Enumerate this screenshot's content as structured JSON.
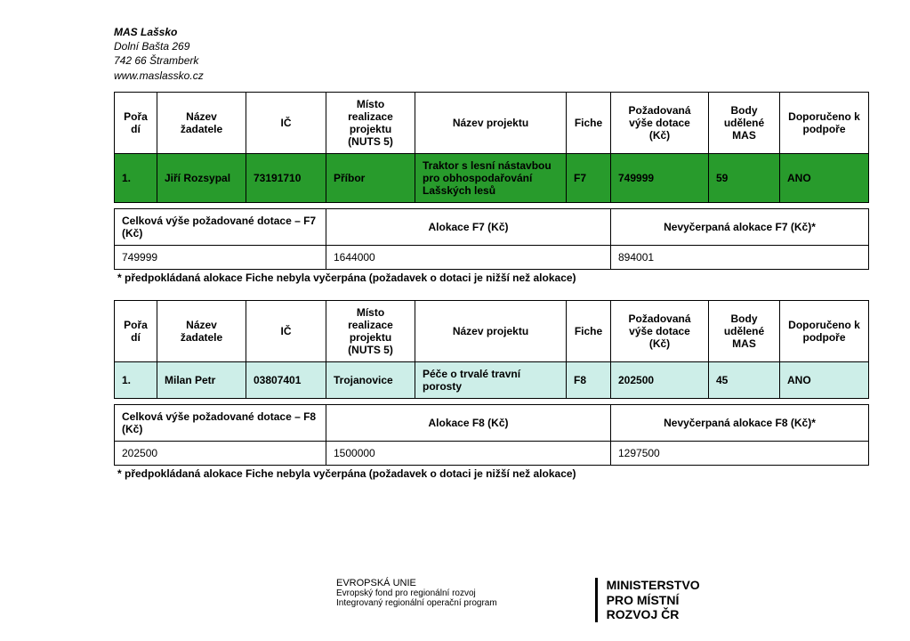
{
  "header": {
    "org": "MAS Lašsko",
    "addr1": "Dolní Bašta 269",
    "addr2": "742 66 Štramberk",
    "web": "www.maslassko.cz"
  },
  "table1": {
    "columns": [
      "Pořadí",
      "Název žadatele",
      "IČ",
      "Místo realizace projektu (NUTS 5)",
      "Název projektu",
      "Fiche",
      "Požadovaná výše dotace (Kč)",
      "Body udělené MAS",
      "Doporučeno k podpoře"
    ],
    "row": {
      "poradi": "1.",
      "zadatel": "Jiří Rozsypal",
      "ic": "73191710",
      "misto": "Příbor",
      "nazev_projektu": "Traktor s lesní nástavbou pro obhospodařování Lašských lesů",
      "fiche": "F7",
      "dotace": "749999",
      "body": "59",
      "doporuceno": "ANO"
    },
    "summary_heads": [
      "Celková výše požadované dotace – F7 (Kč)",
      "Alokace F7 (Kč)",
      "Nevyčerpaná alokace F7 (Kč)*"
    ],
    "summary_vals": [
      "749999",
      "1644000",
      "894001"
    ],
    "footnote": "* předpokládaná alokace Fiche nebyla vyčerpána (požadavek o dotaci je nižší než alokace)"
  },
  "table2": {
    "columns": [
      "Pořadí",
      "Název žadatele",
      "IČ",
      "Místo realizace projektu (NUTS 5)",
      "Název projektu",
      "Fiche",
      "Požadovaná výše dotace (Kč)",
      "Body udělené MAS",
      "Doporučeno k podpoře"
    ],
    "row": {
      "poradi": "1.",
      "zadatel": "Milan Petr",
      "ic": "03807401",
      "misto": "Trojanovice",
      "nazev_projektu": "Péče o trvalé travní porosty",
      "fiche": "F8",
      "dotace": "202500",
      "body": "45",
      "doporuceno": "ANO"
    },
    "summary_heads": [
      "Celková výše požadované dotace – F8 (Kč)",
      "Alokace F8 (Kč)",
      "Nevyčerpaná alokace F8 (Kč)*"
    ],
    "summary_vals": [
      "202500",
      "1500000",
      "1297500"
    ],
    "footnote": "* předpokládaná alokace Fiche nebyla vyčerpána (požadavek o dotaci je nižší než alokace)"
  },
  "footer": {
    "eu1": "EVROPSKÁ UNIE",
    "eu2": "Evropský fond pro regionální rozvoj",
    "eu3": "Integrovaný regionální operační program",
    "min1": "MINISTERSTVO",
    "min2": "PRO MÍSTNÍ",
    "min3": "ROZVOJ ČR"
  }
}
